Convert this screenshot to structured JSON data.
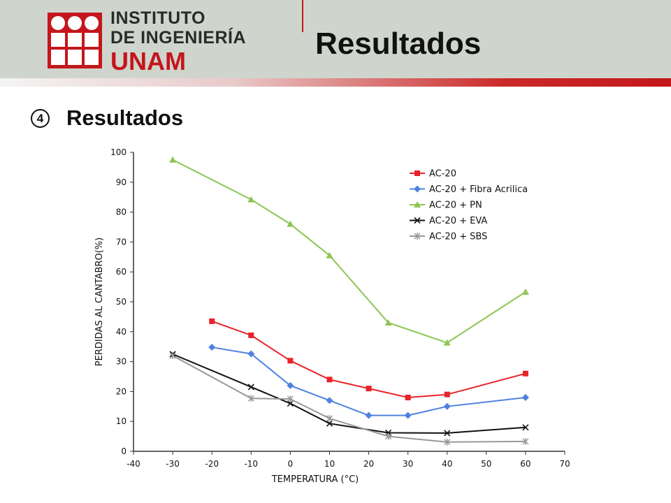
{
  "header": {
    "logo_line1": "INSTITUTO",
    "logo_line2": "DE INGENIERÍA",
    "logo_line3": "UNAM",
    "title": "Resultados",
    "logo_color": "#c4161c"
  },
  "section": {
    "bullet": "4",
    "heading": "Resultados"
  },
  "chart_data": {
    "type": "line",
    "title": "",
    "xlabel": "TEMPERATURA (°C)",
    "ylabel": "PERDIDAS AL CANTABRO(%)",
    "xlim": [
      -40,
      70
    ],
    "ylim": [
      0,
      100
    ],
    "x_ticks": [
      -40,
      -30,
      -20,
      -10,
      0,
      10,
      20,
      30,
      40,
      50,
      60,
      70
    ],
    "y_ticks": [
      0,
      10,
      20,
      30,
      40,
      50,
      60,
      70,
      80,
      90,
      100
    ],
    "grid": false,
    "legend_position": "top-right",
    "series": [
      {
        "name": "AC-20",
        "color": "#e8232a",
        "marker": "square",
        "x": [
          -20,
          -10,
          0,
          10,
          20,
          30,
          40,
          60
        ],
        "y": [
          43.5,
          38.8,
          30.3,
          24,
          21,
          18,
          19,
          26
        ]
      },
      {
        "name": "AC-20 + Fibra Acrilica",
        "color": "#4f81e0",
        "marker": "diamond",
        "x": [
          -20,
          -10,
          0,
          10,
          20,
          30,
          40,
          60
        ],
        "y": [
          34.8,
          32.6,
          22,
          17,
          12,
          12,
          15,
          18
        ]
      },
      {
        "name": "AC-20 + PN",
        "color": "#8dc653",
        "marker": "triangle",
        "x": [
          -30,
          -10,
          0,
          10,
          25,
          40,
          60
        ],
        "y": [
          97.5,
          84.2,
          76,
          65.5,
          43,
          36.3,
          53.3
        ]
      },
      {
        "name": "AC-20 + EVA",
        "color": "#111111",
        "marker": "x",
        "x": [
          -30,
          -10,
          0,
          10,
          25,
          40,
          60
        ],
        "y": [
          32.5,
          21.5,
          16,
          9.3,
          6.2,
          6.1,
          8
        ]
      },
      {
        "name": "AC-20 + SBS",
        "color": "#999999",
        "marker": "star",
        "x": [
          -30,
          -10,
          0,
          10,
          25,
          40,
          60
        ],
        "y": [
          32,
          17.7,
          17.5,
          11,
          5,
          3.1,
          3.3
        ]
      }
    ]
  }
}
